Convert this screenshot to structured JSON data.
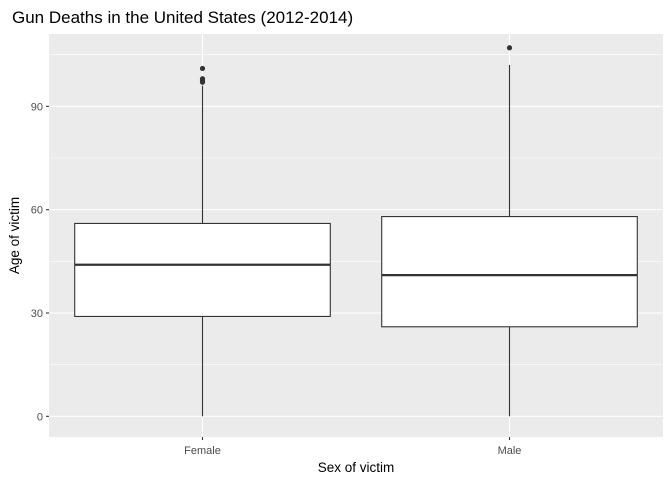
{
  "chart_data": {
    "type": "boxplot",
    "title": "Gun Deaths in the United States (2012-2014)",
    "xlabel": "Sex of victim",
    "ylabel": "Age of victim",
    "categories": [
      "Female",
      "Male"
    ],
    "yticks": [
      0,
      30,
      60,
      90
    ],
    "ylim": [
      -6,
      111
    ],
    "grid": true,
    "colors": {
      "panel": "#ebebeb",
      "grid": "#ffffff",
      "box_fill": "#ffffff",
      "box_line": "#333333",
      "outlier": "#333333",
      "tick_label": "#4d4d4d",
      "text": "#000000"
    },
    "boxes": [
      {
        "category": "Female",
        "lower_whisker": 0,
        "q1": 29,
        "median": 44,
        "q3": 56,
        "upper_whisker": 96,
        "outliers": [
          97,
          97.5,
          98,
          101
        ]
      },
      {
        "category": "Male",
        "lower_whisker": 0,
        "q1": 26,
        "median": 41,
        "q3": 58,
        "upper_whisker": 102,
        "outliers": [
          107
        ]
      }
    ]
  }
}
